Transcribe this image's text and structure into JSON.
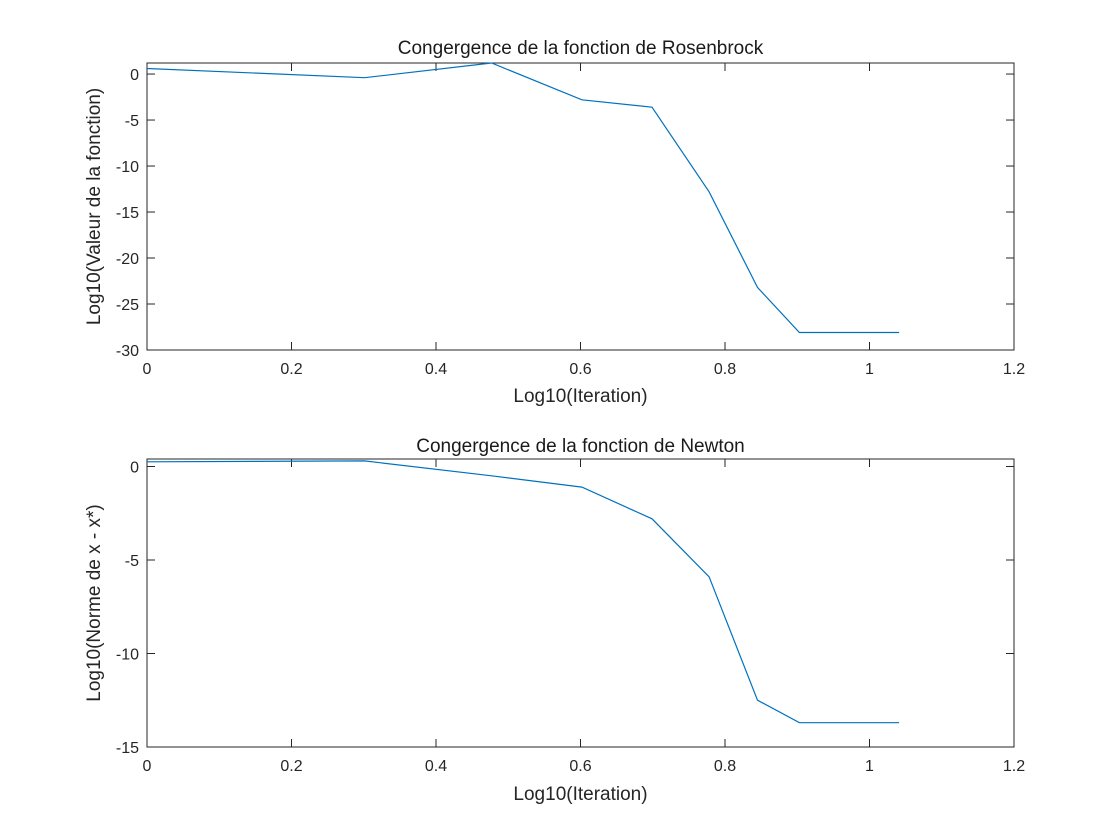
{
  "chart_data": [
    {
      "type": "line",
      "title": "Congergence de la fonction de Rosenbrock",
      "xlabel": "Log10(Iteration)",
      "ylabel": "Log10(Valeur de la fonction)",
      "xlim": [
        0,
        1.2
      ],
      "ylim": [
        -30,
        1.2
      ],
      "xticks": [
        0,
        0.2,
        0.4,
        0.6,
        0.8,
        1,
        1.2
      ],
      "xtick_labels": [
        "0",
        "0.2",
        "0.4",
        "0.6",
        "0.8",
        "1",
        "1.2"
      ],
      "yticks": [
        -30,
        -25,
        -20,
        -15,
        -10,
        -5,
        0
      ],
      "ytick_labels": [
        "-30",
        "-25",
        "-20",
        "-15",
        "-10",
        "-5",
        "0"
      ],
      "grid": false,
      "color": "#0072bd",
      "series": [
        {
          "x": [
            0,
            0.301,
            0.477,
            0.602,
            0.699,
            0.778,
            0.845,
            0.903,
            0.954,
            1.0,
            1.041
          ],
          "y": [
            0.6,
            -0.4,
            1.2,
            -2.8,
            -3.6,
            -12.8,
            -23.2,
            -28.1,
            -28.1,
            -28.1,
            -28.1
          ]
        }
      ]
    },
    {
      "type": "line",
      "title": "Congergence de la fonction de Newton",
      "xlabel": "Log10(Iteration)",
      "ylabel": "Log10(Norme de x - x*)",
      "xlim": [
        0,
        1.2
      ],
      "ylim": [
        -15,
        0.4
      ],
      "xticks": [
        0,
        0.2,
        0.4,
        0.6,
        0.8,
        1,
        1.2
      ],
      "xtick_labels": [
        "0",
        "0.2",
        "0.4",
        "0.6",
        "0.8",
        "1",
        "1.2"
      ],
      "yticks": [
        -15,
        -10,
        -5,
        0
      ],
      "ytick_labels": [
        "-15",
        "-10",
        "-5",
        "0"
      ],
      "grid": false,
      "color": "#0072bd",
      "series": [
        {
          "x": [
            0,
            0.301,
            0.477,
            0.602,
            0.699,
            0.778,
            0.845,
            0.903,
            0.954,
            1.0,
            1.041
          ],
          "y": [
            0.25,
            0.3,
            -0.5,
            -1.1,
            -2.8,
            -5.9,
            -12.5,
            -13.7,
            -13.7,
            -13.7,
            -13.7
          ]
        }
      ]
    }
  ]
}
